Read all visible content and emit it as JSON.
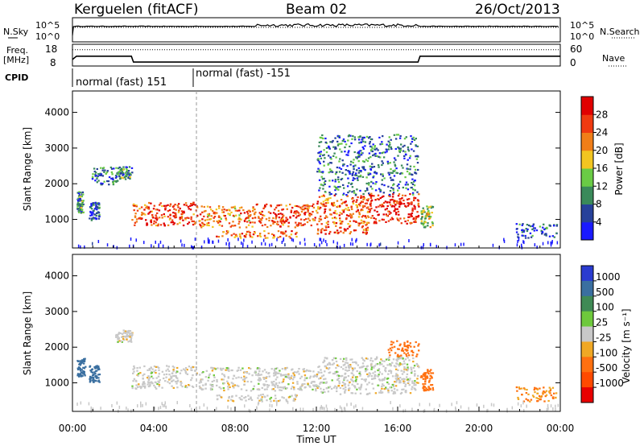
{
  "header": {
    "station": "Kerguelen (fitACF)",
    "beam": "Beam 02",
    "date": "26/Oct/2013"
  },
  "colors": {
    "power_scale": [
      "#1a1aff",
      "#27419a",
      "#3a8a5a",
      "#6acb45",
      "#f2c521",
      "#f07e18",
      "#ef3a10",
      "#e00000"
    ],
    "velocity_scale": [
      "#2a3bd0",
      "#3a6fa0",
      "#3f8a55",
      "#6ec93c",
      "#c8c8c8",
      "#f0a825",
      "#ff7010",
      "#ff4a00",
      "#e80000"
    ],
    "ground_scatter": "#c8c8c8"
  },
  "chart_data": [
    {
      "type": "line",
      "panel": "sky-noise",
      "ylabel": "N.Sky",
      "ylabel_right": "N.Search",
      "yticks_left": [
        "10^5",
        "10^0"
      ],
      "yticks_right": [
        "10^5",
        "10^0"
      ],
      "notes": "Sky noise solid (log scale), search noise dotted; near constant with enhanced fluctuations ~09:00-17:00 UT"
    },
    {
      "type": "line",
      "panel": "frequency-nave",
      "ylabel_top": "Freq.",
      "ylabel_unit": "[MHz]",
      "ylabel_right": "Nave",
      "yticks_left": [
        18,
        8
      ],
      "yticks_right": [
        60,
        0
      ],
      "freq_series": {
        "x_hours": [
          0.0,
          0.2,
          2.9,
          3.0,
          17.0,
          17.1,
          24.0
        ],
        "mhz": [
          11.0,
          12.5,
          12.5,
          9.8,
          9.8,
          12.5,
          12.5
        ]
      },
      "nave_series": {
        "x_hours": [
          0.0,
          0.2,
          24.0
        ],
        "nave": [
          45,
          45,
          45
        ]
      }
    },
    {
      "type": "table",
      "panel": "cpid",
      "label": "CPID",
      "segments": [
        {
          "start_h": 0.0,
          "label": "normal (fast) 151"
        },
        {
          "start_h": 6.1,
          "label": "normal (fast) -151"
        }
      ]
    },
    {
      "type": "heatmap",
      "panel": "power",
      "ylabel": "Slant Range [km]",
      "yticks": [
        1000,
        2000,
        3000,
        4000
      ],
      "ylim": [
        200,
        4600
      ],
      "xlim": [
        0,
        24
      ],
      "colorbar_label": "Power [dB]",
      "colorbar_ticks": [
        4,
        8,
        12,
        16,
        20,
        24,
        28
      ],
      "colorbar_range": [
        0,
        32
      ],
      "regions": [
        {
          "t0": 0.2,
          "t1": 0.5,
          "r0": 1200,
          "r1": 1800,
          "v": 10
        },
        {
          "t0": 0.8,
          "t1": 1.3,
          "r0": 1000,
          "r1": 1500,
          "v": 6
        },
        {
          "t0": 0.9,
          "t1": 2.2,
          "r0": 2000,
          "r1": 2500,
          "v": 8
        },
        {
          "t0": 2.1,
          "t1": 2.9,
          "r0": 2150,
          "r1": 2500,
          "v": 10
        },
        {
          "t0": 2.9,
          "t1": 6.1,
          "r0": 850,
          "r1": 1500,
          "v": 26
        },
        {
          "t0": 6.2,
          "t1": 9.0,
          "r0": 800,
          "r1": 1400,
          "v": 22
        },
        {
          "t0": 7.0,
          "t1": 11.0,
          "r0": 500,
          "r1": 700,
          "v": 24
        },
        {
          "t0": 9.0,
          "t1": 12.0,
          "r0": 800,
          "r1": 1450,
          "v": 26
        },
        {
          "t0": 12.0,
          "t1": 14.5,
          "r0": 600,
          "r1": 1700,
          "v": 24
        },
        {
          "t0": 14.5,
          "t1": 17.0,
          "r0": 900,
          "r1": 1750,
          "v": 28
        },
        {
          "t0": 12.0,
          "t1": 17.0,
          "r0": 1700,
          "r1": 3400,
          "v": 8
        },
        {
          "t0": 17.1,
          "t1": 17.7,
          "r0": 800,
          "r1": 1400,
          "v": 14
        },
        {
          "t0": 21.8,
          "t1": 23.8,
          "r0": 500,
          "r1": 900,
          "v": 6
        }
      ]
    },
    {
      "type": "heatmap",
      "panel": "velocity",
      "ylabel": "Slant Range [km]",
      "yticks": [
        1000,
        2000,
        3000,
        4000
      ],
      "ylim": [
        200,
        4600
      ],
      "xlim": [
        0,
        24
      ],
      "xlabel": "Time UT",
      "xticks": [
        "00:00",
        "04:00",
        "08:00",
        "12:00",
        "16:00",
        "20:00",
        "00:00"
      ],
      "colorbar_label": "Velocity [m s⁻¹]",
      "colorbar_ticks": [
        "1000",
        "500",
        "100",
        "25",
        "-25",
        "-100",
        "-500",
        "-1000"
      ],
      "regions": [
        {
          "t0": 0.2,
          "t1": 0.6,
          "r0": 1200,
          "r1": 1700,
          "v": 300
        },
        {
          "t0": 0.8,
          "t1": 1.3,
          "r0": 1000,
          "r1": 1500,
          "v": 200
        },
        {
          "t0": 2.1,
          "t1": 2.9,
          "r0": 2150,
          "r1": 2500,
          "v": 0
        },
        {
          "t0": 2.9,
          "t1": 6.1,
          "r0": 850,
          "r1": 1500,
          "v": 0
        },
        {
          "t0": 6.2,
          "t1": 12.0,
          "r0": 800,
          "r1": 1450,
          "v": 0
        },
        {
          "t0": 7.0,
          "t1": 11.0,
          "r0": 500,
          "r1": 700,
          "v": 0
        },
        {
          "t0": 12.0,
          "t1": 17.0,
          "r0": 700,
          "r1": 1750,
          "v": 0
        },
        {
          "t0": 15.5,
          "t1": 17.0,
          "r0": 1750,
          "r1": 2200,
          "v": -200
        },
        {
          "t0": 17.1,
          "t1": 17.7,
          "r0": 800,
          "r1": 1400,
          "v": -300
        },
        {
          "t0": 21.8,
          "t1": 23.8,
          "r0": 500,
          "r1": 900,
          "v": -100
        }
      ]
    }
  ]
}
